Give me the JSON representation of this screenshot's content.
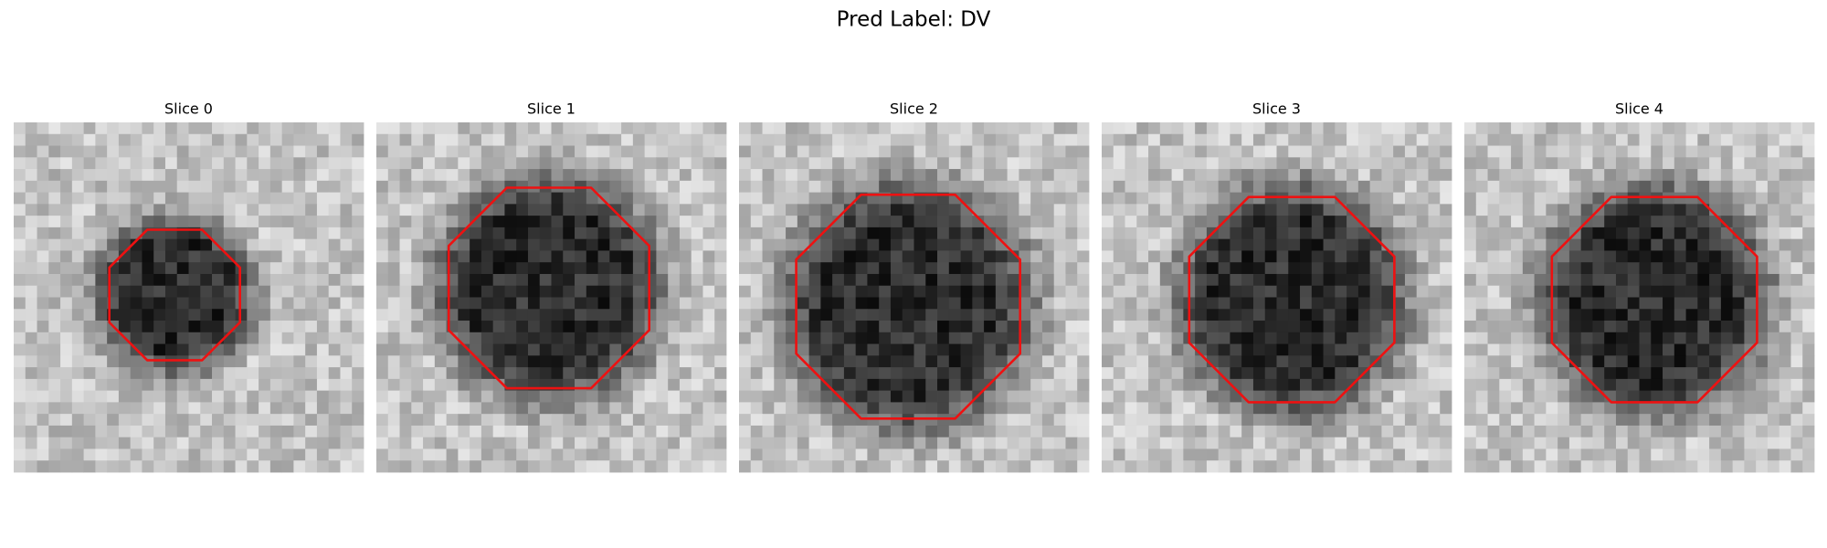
{
  "figure": {
    "title": "Pred Label: DV",
    "panels": [
      {
        "title": "Slice 0"
      },
      {
        "title": "Slice 1"
      },
      {
        "title": "Slice 2"
      },
      {
        "title": "Slice 3"
      },
      {
        "title": "Slice 4"
      }
    ]
  }
}
